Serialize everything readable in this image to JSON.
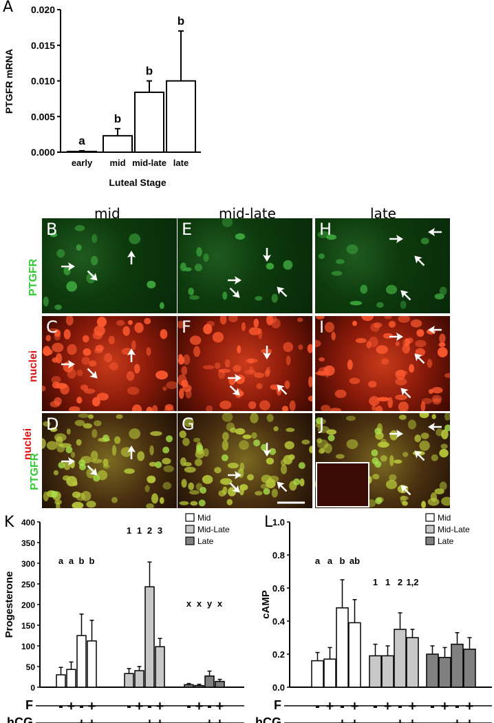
{
  "panelA": {
    "letter": "A",
    "chart_data": {
      "type": "bar",
      "categories": [
        "early",
        "mid",
        "mid-late",
        "late"
      ],
      "values": [
        0.0001,
        0.0023,
        0.0084,
        0.01
      ],
      "errors": [
        0.0001,
        0.001,
        0.0016,
        0.007
      ],
      "sig": [
        "a",
        "b",
        "b",
        "b"
      ],
      "ylabel": "PTGFR mRNA",
      "xlabel": "Luteal Stage",
      "ylim": [
        0,
        0.02
      ],
      "yticks": [
        "0.000",
        "0.005",
        "0.010",
        "0.015",
        "0.020"
      ]
    }
  },
  "micro": {
    "columns": [
      "mid",
      "mid-late",
      "late"
    ],
    "rows": [
      "PTGFR",
      "nuclei",
      "nuclei PTGFR"
    ],
    "row_label_ptgfr": "PTGFR",
    "row_label_nuclei": "nuclei",
    "letters": [
      [
        "B",
        "C",
        "D"
      ],
      [
        "E",
        "F",
        "G"
      ],
      [
        "H",
        "I",
        "J"
      ]
    ]
  },
  "panelK": {
    "letter": "K",
    "chart_data": {
      "type": "bar",
      "ylabel": "Progesterone",
      "ylim": [
        0,
        400
      ],
      "yticks": [
        "0",
        "50",
        "100",
        "150",
        "200",
        "250",
        "300",
        "350",
        "400"
      ],
      "legend": [
        "Mid",
        "Mid-Late",
        "Late"
      ],
      "legend_placement": "top-right",
      "series": [
        {
          "name": "Mid",
          "values": [
            30,
            43,
            125,
            112
          ],
          "errors": [
            18,
            18,
            52,
            50
          ],
          "sig": [
            "a",
            "a",
            "b",
            "b"
          ]
        },
        {
          "name": "Mid-Late",
          "values": [
            33,
            40,
            243,
            98
          ],
          "errors": [
            12,
            10,
            60,
            20
          ],
          "sig": [
            "1",
            "1",
            "2",
            "3"
          ]
        },
        {
          "name": "Late",
          "values": [
            6,
            4,
            27,
            14
          ],
          "errors": [
            3,
            3,
            12,
            5
          ],
          "sig": [
            "x",
            "x",
            "y",
            "x"
          ]
        }
      ],
      "F": [
        "-",
        "+",
        "-",
        "+"
      ],
      "hCG": [
        "-",
        "-",
        "+",
        "+"
      ],
      "row_F": "F",
      "row_hCG": "hCG"
    }
  },
  "panelL": {
    "letter": "L",
    "chart_data": {
      "type": "bar",
      "ylabel": "cAMP",
      "ylim": [
        0,
        1.0
      ],
      "yticks": [
        "0.0",
        "0.2",
        "0.4",
        "0.6",
        "0.8",
        "1.0"
      ],
      "legend": [
        "Mid",
        "Mid-Late",
        "Late"
      ],
      "legend_placement": "top-right",
      "series": [
        {
          "name": "Mid",
          "values": [
            0.16,
            0.17,
            0.48,
            0.39
          ],
          "errors": [
            0.05,
            0.07,
            0.17,
            0.14
          ],
          "sig": [
            "a",
            "a",
            "b",
            "ab"
          ]
        },
        {
          "name": "Mid-Late",
          "values": [
            0.19,
            0.19,
            0.35,
            0.3
          ],
          "errors": [
            0.07,
            0.06,
            0.1,
            0.05
          ],
          "sig": [
            "1",
            "1",
            "2",
            "1,2"
          ]
        },
        {
          "name": "Late",
          "values": [
            0.2,
            0.18,
            0.26,
            0.23
          ],
          "errors": [
            0.05,
            0.06,
            0.07,
            0.07
          ],
          "sig": [
            "",
            "",
            "",
            ""
          ]
        }
      ],
      "F": [
        "-",
        "+",
        "-",
        "+"
      ],
      "hCG": [
        "-",
        "-",
        "+",
        "+"
      ],
      "row_F": "F",
      "row_hCG": "hCG"
    }
  },
  "colors": {
    "mid": "#ffffff",
    "midlate": "#c8c8c8",
    "late": "#808080",
    "ptgfr_label": "#33cc33",
    "nuclei_label": "#e01010"
  }
}
